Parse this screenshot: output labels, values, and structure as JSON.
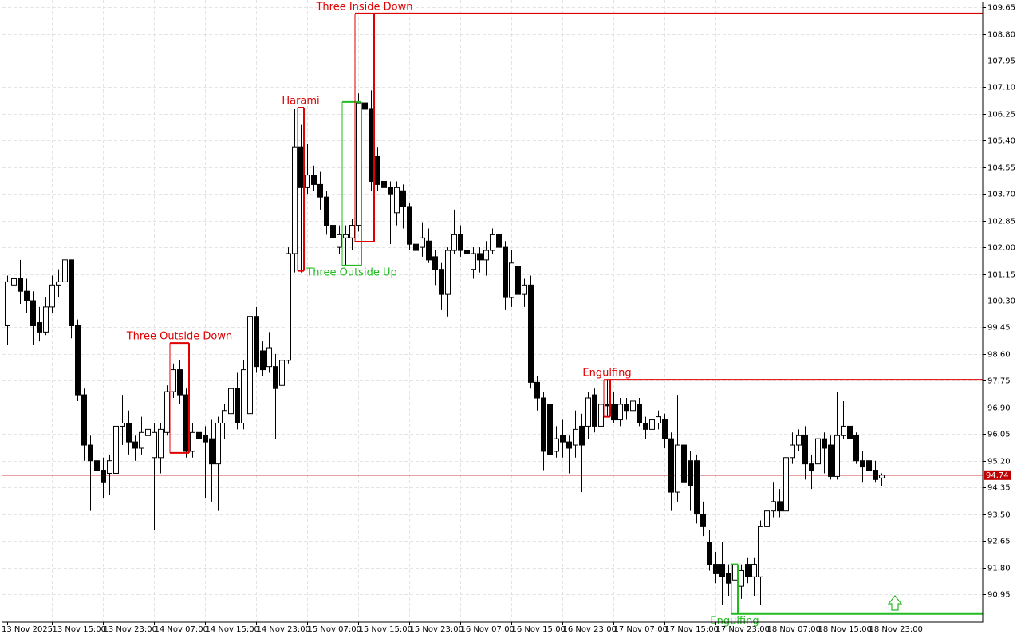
{
  "chart_data": {
    "type": "candlestick",
    "categories": [
      "13 Nov 2025",
      null,
      null,
      null,
      null,
      null,
      null,
      "13 Nov 15:00",
      null,
      null,
      null,
      null,
      null,
      null,
      null,
      "13 Nov 23:00",
      null,
      null,
      null,
      null,
      null,
      null,
      null,
      "14 Nov 07:00",
      null,
      null,
      null,
      null,
      null,
      null,
      null,
      "14 Nov 15:00",
      null,
      null,
      null,
      null,
      null,
      null,
      null,
      "14 Nov 23:00",
      null,
      null,
      null,
      null,
      null,
      null,
      null,
      "15 Nov 07:00",
      null,
      null,
      null,
      null,
      null,
      null,
      null,
      "15 Nov 15:00",
      null,
      null,
      null,
      null,
      null,
      null,
      null,
      "15 Nov 23:00",
      null,
      null,
      null,
      null,
      null,
      null,
      null,
      "16 Nov 07:00",
      null,
      null,
      null,
      null,
      null,
      null,
      null,
      "16 Nov 15:00",
      null,
      null,
      null,
      null,
      null,
      null,
      null,
      "16 Nov 23:00",
      null,
      null,
      null,
      null,
      null,
      null,
      null,
      "17 Nov 07:00",
      null,
      null,
      null,
      null,
      null,
      null,
      null,
      "17 Nov 15:00",
      null,
      null,
      null,
      null,
      null,
      null,
      null,
      "17 Nov 23:00",
      null,
      null,
      null,
      null,
      null,
      null,
      null,
      "18 Nov 07:00",
      null,
      null,
      null,
      null,
      null,
      null,
      null,
      "18 Nov 15:00",
      null,
      null,
      null,
      null,
      null,
      null,
      null,
      "18 Nov 23:00",
      null,
      null
    ],
    "open": [
      99.5,
      100.8,
      101.0,
      100.6,
      100.3,
      99.6,
      99.3,
      100.1,
      100.8,
      100.9,
      101.6,
      99.5,
      97.3,
      95.7,
      95.2,
      94.9,
      94.8,
      94.8,
      96.3,
      96.4,
      95.8,
      95.6,
      96.0,
      95.3,
      95.3,
      96.1,
      97.4,
      98.1,
      97.3,
      95.5,
      96.1,
      96.0,
      95.9,
      95.1,
      96.4,
      96.7,
      97.5,
      96.4,
      96.7,
      99.8,
      98.7,
      98.2,
      98.2,
      97.6,
      98.4,
      101.8,
      105.2,
      103.9,
      104.3,
      104.0,
      103.6,
      102.7,
      102.0,
      102.3,
      102.3,
      102.7,
      106.6,
      106.4,
      104.9,
      104.1,
      103.9,
      103.1,
      103.8,
      103.3,
      102.1,
      102.0,
      102.2,
      101.7,
      101.3,
      100.5,
      101.9,
      102.4,
      101.9,
      101.3,
      101.8,
      101.6,
      101.9,
      102.4,
      102.0,
      100.4,
      101.4,
      100.5,
      100.8,
      97.7,
      97.2,
      97.0,
      95.5,
      96.0,
      95.8,
      95.7,
      96.3,
      96.3,
      97.3,
      96.3,
      97.0,
      97.0,
      96.5,
      97.0,
      96.8,
      97.0,
      96.4,
      96.2,
      96.4,
      96.5,
      95.9,
      94.2,
      95.7,
      95.2,
      95.2,
      93.5,
      92.6,
      91.9,
      91.9,
      91.6,
      91.4,
      91.2,
      91.9,
      91.5,
      91.5,
      93.1,
      93.6,
      93.9,
      93.6,
      95.3,
      95.7,
      96.0,
      95.1,
      95.1,
      95.9,
      95.7,
      94.7,
      96.0,
      96.3,
      96.0,
      95.2,
      95.2,
      94.9,
      94.65
    ],
    "high": [
      101.1,
      101.4,
      101.6,
      101.0,
      100.6,
      100.1,
      100.4,
      101.1,
      101.3,
      102.6,
      101.6,
      99.7,
      97.5,
      96.0,
      95.5,
      95.3,
      95.4,
      96.6,
      97.3,
      96.8,
      96.0,
      96.6,
      96.4,
      96.4,
      96.4,
      97.6,
      98.3,
      98.4,
      97.5,
      96.4,
      96.3,
      96.3,
      96.5,
      96.6,
      97.0,
      97.8,
      98.0,
      98.4,
      100.1,
      100.1,
      99.0,
      99.3,
      98.6,
      98.5,
      102.0,
      106.4,
      105.9,
      105.3,
      104.6,
      104.4,
      103.8,
      102.9,
      102.7,
      102.7,
      102.9,
      106.9,
      106.9,
      107.0,
      105.2,
      104.3,
      104.1,
      104.1,
      104.0,
      103.4,
      102.5,
      102.8,
      102.6,
      101.9,
      101.5,
      102.0,
      103.2,
      102.7,
      102.6,
      102.0,
      102.0,
      102.2,
      102.6,
      102.7,
      102.2,
      101.9,
      101.6,
      101.0,
      101.1,
      97.9,
      97.4,
      97.1,
      96.3,
      96.5,
      96.0,
      96.8,
      96.7,
      97.4,
      97.5,
      97.2,
      97.8,
      97.4,
      97.2,
      97.2,
      97.4,
      97.2,
      96.6,
      96.7,
      96.8,
      96.7,
      96.1,
      97.3,
      96.0,
      95.5,
      95.4,
      93.9,
      93.0,
      92.3,
      92.6,
      91.9,
      92.0,
      91.9,
      92.1,
      92.1,
      93.3,
      94.0,
      94.5,
      94.3,
      95.5,
      96.1,
      96.2,
      96.3,
      95.4,
      96.1,
      96.1,
      96.0,
      97.4,
      97.1,
      96.6,
      96.1,
      95.5,
      95.4,
      95.2,
      94.8
    ],
    "low": [
      98.9,
      100.4,
      100.2,
      99.9,
      98.9,
      99.0,
      99.2,
      99.9,
      100.4,
      100.2,
      99.1,
      97.1,
      95.2,
      93.6,
      94.4,
      94.0,
      94.1,
      94.7,
      95.7,
      95.4,
      95.2,
      95.4,
      95.1,
      93.0,
      94.8,
      96.0,
      97.2,
      97.0,
      95.3,
      95.3,
      95.6,
      94.0,
      93.9,
      93.6,
      95.9,
      96.1,
      96.2,
      96.2,
      96.6,
      98.0,
      97.9,
      98.0,
      95.9,
      97.4,
      98.3,
      101.2,
      101.2,
      103.7,
      103.8,
      103.2,
      102.4,
      101.9,
      101.8,
      101.4,
      101.9,
      102.5,
      105.5,
      103.8,
      103.8,
      102.9,
      102.1,
      102.7,
      102.6,
      101.9,
      101.5,
      101.7,
      101.5,
      100.8,
      100.0,
      99.8,
      101.8,
      101.7,
      101.5,
      101.0,
      101.2,
      101.1,
      101.8,
      101.6,
      100.0,
      100.1,
      100.2,
      100.1,
      97.5,
      96.8,
      94.9,
      94.9,
      95.3,
      95.3,
      94.8,
      95.3,
      94.2,
      95.9,
      96.1,
      96.1,
      96.6,
      96.4,
      96.3,
      96.5,
      96.6,
      96.3,
      95.9,
      96.1,
      96.2,
      95.6,
      93.6,
      93.9,
      94.3,
      93.6,
      93.2,
      92.8,
      91.7,
      91.3,
      90.6,
      90.9,
      90.9,
      90.8,
      91.3,
      90.9,
      90.6,
      92.9,
      93.4,
      93.4,
      93.4,
      95.1,
      95.5,
      94.6,
      94.3,
      94.6,
      94.8,
      94.6,
      94.6,
      95.9,
      95.7,
      95.1,
      94.5,
      94.7,
      94.5,
      94.4
    ],
    "close": [
      100.9,
      101.0,
      100.6,
      100.3,
      99.5,
      99.3,
      100.1,
      100.8,
      100.9,
      101.6,
      99.5,
      97.3,
      95.7,
      95.2,
      94.9,
      94.5,
      95.2,
      96.3,
      96.4,
      95.8,
      95.6,
      96.1,
      96.2,
      96.1,
      96.2,
      97.4,
      98.1,
      97.3,
      95.5,
      96.1,
      95.9,
      95.8,
      95.1,
      96.4,
      96.8,
      97.5,
      96.4,
      98.1,
      99.8,
      98.2,
      98.1,
      98.8,
      97.5,
      98.4,
      101.8,
      105.2,
      103.9,
      104.3,
      104.0,
      103.6,
      102.7,
      102.3,
      102.4,
      102.4,
      102.7,
      106.6,
      106.4,
      104.1,
      104.0,
      103.9,
      103.7,
      103.9,
      103.3,
      102.1,
      101.9,
      102.3,
      101.6,
      101.3,
      100.5,
      101.9,
      102.4,
      101.9,
      101.8,
      101.8,
      101.6,
      101.9,
      102.4,
      102.0,
      100.4,
      101.5,
      100.5,
      100.8,
      97.7,
      97.2,
      95.5,
      95.4,
      95.9,
      95.8,
      95.6,
      96.2,
      95.7,
      97.2,
      96.3,
      97.0,
      96.95,
      96.5,
      97.0,
      96.8,
      97.1,
      96.4,
      96.2,
      96.5,
      96.6,
      95.9,
      94.2,
      95.7,
      94.5,
      94.4,
      93.5,
      93.1,
      91.9,
      91.6,
      91.5,
      91.3,
      91.9,
      91.7,
      91.5,
      91.9,
      93.1,
      93.6,
      93.9,
      93.6,
      95.3,
      95.7,
      96.0,
      95.1,
      94.9,
      95.9,
      95.6,
      94.7,
      96.0,
      96.3,
      95.9,
      95.2,
      95.0,
      94.9,
      94.6,
      94.74
    ],
    "up_color": "#ffffff",
    "down_color": "#000000",
    "wick_color": "#000000",
    "current_price": 94.74,
    "current_price_color": "#c00000",
    "ylim": [
      90.06,
      109.88
    ],
    "yticks": [
      90.95,
      {
        "value": 91.8,
        "label": "91.80"
      },
      92.65,
      {
        "value": 93.5,
        "label": "93.50"
      },
      94.35,
      {
        "value": 95.2,
        "label": "95.20"
      },
      96.05,
      {
        "value": 96.9,
        "label": "96.90"
      },
      97.75,
      {
        "value": 98.6,
        "label": "98.60"
      },
      99.45,
      {
        "value": 100.3,
        "label": "100.30"
      },
      101.15,
      {
        "value": 102,
        "label": "102.00"
      },
      102.85,
      {
        "value": 103.7,
        "label": "103.70"
      },
      104.55,
      {
        "value": 105.4,
        "label": "105.40"
      },
      106.25,
      {
        "value": 107.1,
        "label": "107.10"
      },
      107.95,
      {
        "value": 108.8,
        "label": "108.80"
      },
      109.65
    ],
    "grid": true,
    "patterns": [
      {
        "text": "Three Outside Down",
        "color": "#e00000",
        "first": 26,
        "last": 28,
        "high": 98.95,
        "low": 95.45,
        "label_position": "above",
        "line": false
      },
      {
        "text": "Harami",
        "color": "#e00000",
        "first": 46,
        "last": 46,
        "high": 106.45,
        "low": 101.25,
        "label_position": "above",
        "line": false
      },
      {
        "text": "Three Outside Up",
        "color": "#22bb22",
        "first": 53,
        "last": 55,
        "high": 106.63,
        "low": 101.42,
        "label_position": "below",
        "line": false
      },
      {
        "text": "Three Inside Down",
        "color": "#e00000",
        "first": 55,
        "last": 57,
        "high": 109.45,
        "low": 102.18,
        "label_position": "above",
        "line": true
      },
      {
        "text": "Engulfing",
        "color": "#e00000",
        "first": 94,
        "last": 94,
        "high": 97.78,
        "low": 96.6,
        "label_position": "above",
        "line": true
      },
      {
        "text": "Engulfing",
        "color": "#22bb22",
        "first": 114,
        "last": 114,
        "high": 91.9,
        "low": 90.32,
        "label_position": "below",
        "line": true
      }
    ]
  }
}
